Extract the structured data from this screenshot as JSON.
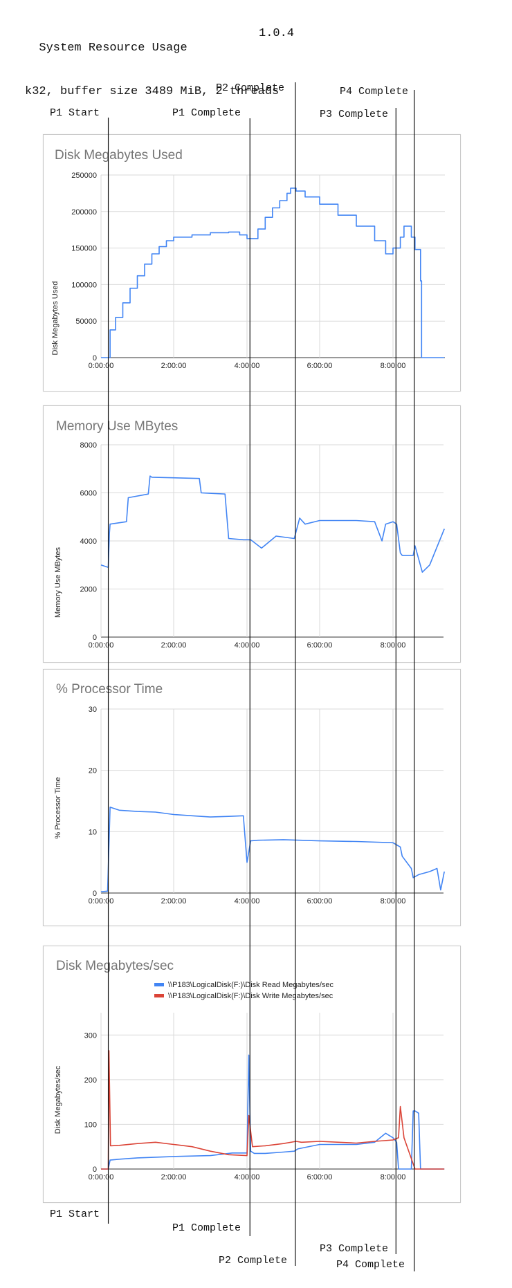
{
  "header": {
    "title": "System Resource Usage",
    "version": "1.0.4",
    "subtitle": "k32, buffer size 3489 MiB, 2 threads"
  },
  "phases": {
    "top": [
      {
        "name": "P1 Start",
        "time_h": 0.22
      },
      {
        "name": "P1 Complete",
        "time_h": 4.1
      },
      {
        "name": "P2 Complete",
        "time_h": 5.35
      },
      {
        "name": "P3 Complete",
        "time_h": 8.1
      },
      {
        "name": "P4 Complete",
        "time_h": 8.6
      }
    ],
    "bottom": [
      {
        "name": "P1 Start"
      },
      {
        "name": "P1 Complete"
      },
      {
        "name": "P2 Complete"
      },
      {
        "name": "P3 Complete"
      },
      {
        "name": "P4 Complete"
      }
    ]
  },
  "x_ticks": [
    "0:00:00",
    "2:00:00",
    "4:00:00",
    "6:00:00",
    "8:00:00"
  ],
  "colors": {
    "read": "#4285f4",
    "write": "#db4437",
    "grid": "#d9d9d9",
    "axis": "#333333"
  },
  "chart_data": [
    {
      "type": "line",
      "title": "Disk Megabytes Used",
      "ylabel": "Disk Megabytes Used",
      "xlim": [
        0,
        9.4
      ],
      "ylim": [
        0,
        250000
      ],
      "y_ticks": [
        "0",
        "50000",
        "100000",
        "150000",
        "200000",
        "250000"
      ],
      "series": [
        {
          "style": "step",
          "x": [
            0,
            0.22,
            0.25,
            0.4,
            0.6,
            0.8,
            1.0,
            1.2,
            1.4,
            1.6,
            1.8,
            2.0,
            2.5,
            3.0,
            3.5,
            3.8,
            4.0,
            4.3,
            4.5,
            4.7,
            4.9,
            5.1,
            5.2,
            5.35,
            5.6,
            6.0,
            6.5,
            7.0,
            7.5,
            7.8,
            8.0,
            8.2,
            8.3,
            8.5,
            8.6,
            8.75,
            8.78,
            9.4
          ],
          "y": [
            0,
            0,
            38000,
            55000,
            75000,
            95000,
            112000,
            128000,
            142000,
            152000,
            160000,
            165000,
            168000,
            171000,
            172000,
            168000,
            163000,
            176000,
            192000,
            205000,
            215000,
            225000,
            232000,
            228000,
            220000,
            210000,
            195000,
            180000,
            160000,
            142000,
            150000,
            165000,
            180000,
            165000,
            148000,
            105000,
            0,
            0
          ]
        }
      ]
    },
    {
      "type": "line",
      "title": "Memory Use MBytes",
      "ylabel": "Memory Use MBytes",
      "xlim": [
        0,
        9.4
      ],
      "ylim": [
        0,
        8000
      ],
      "y_ticks": [
        "0",
        "2000",
        "4000",
        "6000",
        "8000"
      ],
      "series": [
        {
          "x": [
            0,
            0.2,
            0.23,
            0.25,
            0.7,
            0.75,
            1.3,
            1.35,
            1.4,
            2.7,
            2.75,
            3.4,
            3.5,
            3.9,
            4.1,
            4.4,
            4.8,
            5.3,
            5.45,
            5.6,
            6.0,
            7.0,
            7.5,
            7.7,
            7.8,
            8.0,
            8.1,
            8.2,
            8.25,
            8.55,
            8.6,
            8.8,
            9.0,
            9.4
          ],
          "y": [
            3000,
            2900,
            4300,
            4700,
            4800,
            5800,
            5950,
            6700,
            6650,
            6600,
            6000,
            5950,
            4100,
            4050,
            4050,
            3700,
            4200,
            4100,
            4950,
            4700,
            4850,
            4850,
            4800,
            4000,
            4700,
            4800,
            4700,
            3500,
            3400,
            3400,
            3800,
            2700,
            3000,
            4500
          ]
        }
      ]
    },
    {
      "type": "line",
      "title": "% Processor Time",
      "ylabel": "% Processor Time",
      "xlim": [
        0,
        9.4
      ],
      "ylim": [
        0,
        30
      ],
      "y_ticks": [
        "0",
        "10",
        "20",
        "30"
      ],
      "series": [
        {
          "x": [
            0,
            0.18,
            0.2,
            0.25,
            0.5,
            1.0,
            1.5,
            2.0,
            2.5,
            3.0,
            3.5,
            3.9,
            4.0,
            4.1,
            4.3,
            5.0,
            6.0,
            7.0,
            8.0,
            8.2,
            8.25,
            8.5,
            8.55,
            8.7,
            9.0,
            9.2,
            9.3,
            9.4
          ],
          "y": [
            0.2,
            0.3,
            4.0,
            14.0,
            13.5,
            13.3,
            13.2,
            12.8,
            12.6,
            12.4,
            12.5,
            12.6,
            5.0,
            8.5,
            8.6,
            8.7,
            8.5,
            8.4,
            8.2,
            7.5,
            6.0,
            4.0,
            2.5,
            3.0,
            3.5,
            4.0,
            0.5,
            3.5
          ]
        }
      ]
    },
    {
      "type": "line",
      "title": "Disk Megabytes/sec",
      "ylabel": "Disk Megabytes/sec",
      "xlim": [
        0,
        9.4
      ],
      "ylim": [
        0,
        350
      ],
      "y_ticks": [
        "0",
        "100",
        "200",
        "300"
      ],
      "legend": "top",
      "series": [
        {
          "name": "\\\\P183\\LogicalDisk(F:)\\Disk Read Megabytes/sec",
          "color": "#4285f4",
          "x": [
            0,
            0.2,
            0.25,
            0.5,
            1.0,
            2.0,
            3.0,
            3.5,
            3.6,
            4.0,
            4.05,
            4.1,
            4.2,
            4.5,
            5.0,
            5.3,
            5.4,
            6.0,
            7.0,
            7.5,
            7.8,
            8.0,
            8.1,
            8.15,
            8.5,
            8.55,
            8.6,
            8.7,
            8.75,
            9.4
          ],
          "y": [
            0,
            0,
            20,
            22,
            25,
            28,
            30,
            35,
            36,
            36,
            255,
            40,
            35,
            35,
            38,
            40,
            45,
            55,
            55,
            60,
            80,
            70,
            60,
            0,
            0,
            130,
            130,
            125,
            0,
            0
          ]
        },
        {
          "name": "\\\\P183\\LogicalDisk(F:)\\Disk Write Megabytes/sec",
          "color": "#db4437",
          "x": [
            0,
            0.2,
            0.22,
            0.26,
            0.5,
            1.0,
            1.5,
            2.0,
            2.5,
            3.0,
            3.5,
            4.0,
            4.05,
            4.15,
            4.5,
            5.0,
            5.35,
            5.5,
            6.0,
            7.0,
            7.5,
            8.0,
            8.15,
            8.2,
            8.3,
            8.6,
            8.8,
            9.4
          ],
          "y": [
            0,
            0,
            265,
            52,
            53,
            57,
            60,
            55,
            50,
            40,
            32,
            30,
            120,
            50,
            52,
            57,
            62,
            60,
            62,
            58,
            62,
            65,
            70,
            140,
            70,
            0,
            0,
            0
          ]
        }
      ]
    }
  ]
}
